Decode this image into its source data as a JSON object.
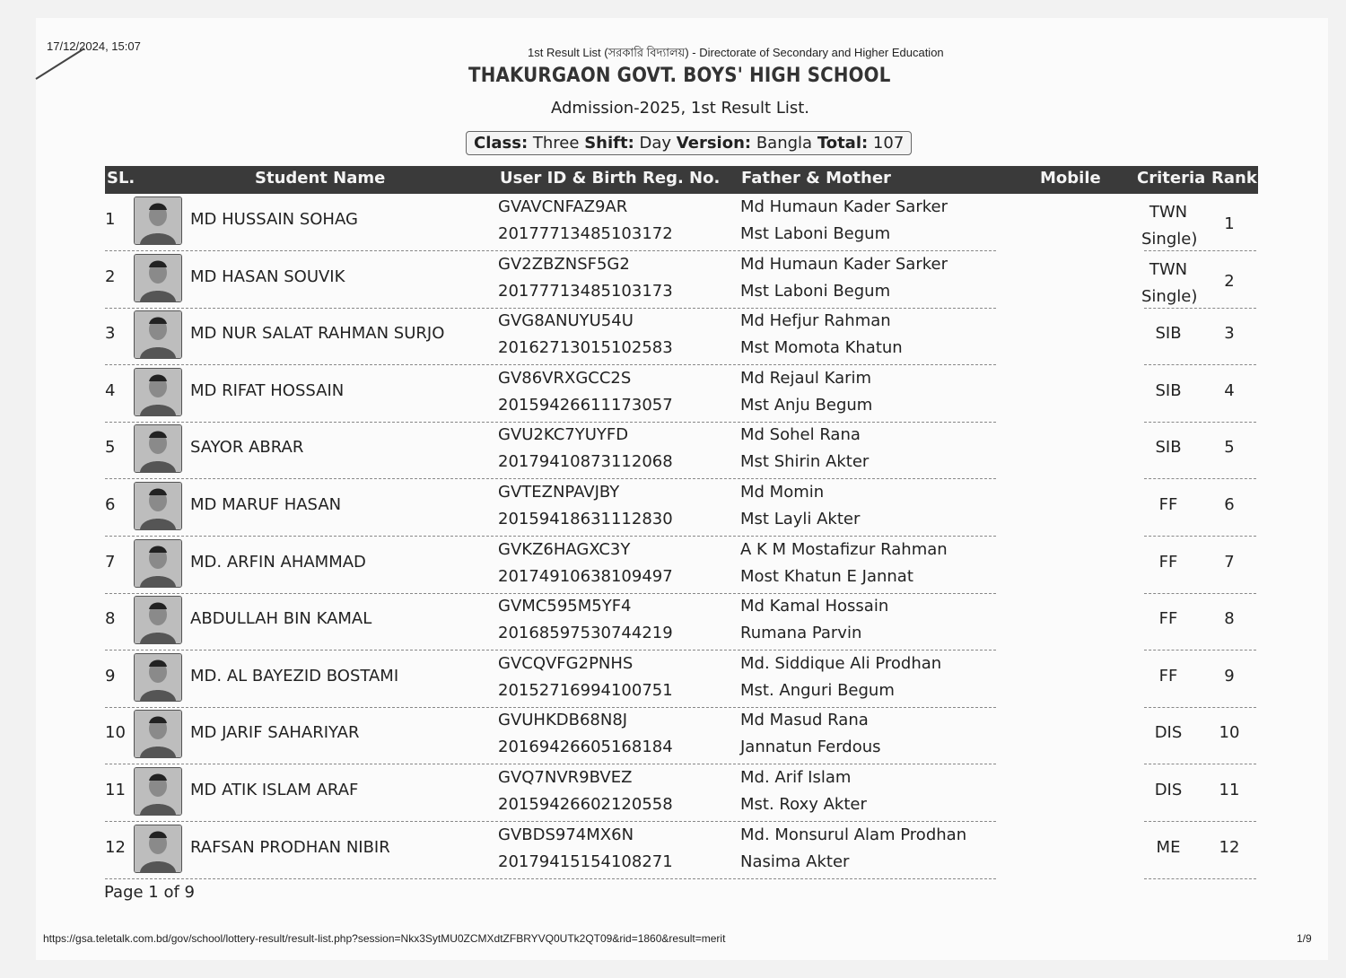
{
  "header": {
    "timestamp": "17/12/2024, 15:07",
    "page_title": "1st Result List (সরকারি বিদ্যালয়) - Directorate of Secondary and Higher Education",
    "school_name": "THAKURGAON GOVT. BOYS' HIGH SCHOOL",
    "subtitle": "Admission-2025, 1st Result List.",
    "info": {
      "class_label": "Class:",
      "class_value": "Three",
      "shift_label": "Shift:",
      "shift_value": "Day",
      "version_label": "Version:",
      "version_value": "Bangla",
      "total_label": "Total:",
      "total_value": "107"
    }
  },
  "table": {
    "columns": [
      "SL.",
      "Student Name",
      "User ID & Birth Reg. No.",
      "Father & Mother",
      "Mobile",
      "Criteria",
      "Rank"
    ],
    "rows": [
      {
        "sl": "1",
        "name": "MD HUSSAIN SOHAG",
        "user_id": "GVAVCNFAZ9AR",
        "birth_reg": "20177713485103172",
        "father": "Md Humaun Kader Sarker",
        "mother": "Mst Laboni Begum",
        "mobile": "",
        "criteria": "TWN Single)",
        "rank": "1"
      },
      {
        "sl": "2",
        "name": "MD HASAN SOUVIK",
        "user_id": "GV2ZBZNSF5G2",
        "birth_reg": "20177713485103173",
        "father": "Md Humaun Kader Sarker",
        "mother": "Mst Laboni Begum",
        "mobile": "",
        "criteria": "TWN Single)",
        "rank": "2"
      },
      {
        "sl": "3",
        "name": "MD NUR SALAT RAHMAN SURJO",
        "user_id": "GVG8ANUYU54U",
        "birth_reg": "20162713015102583",
        "father": "Md Hefjur Rahman",
        "mother": "Mst Momota Khatun",
        "mobile": "",
        "criteria": "SIB",
        "rank": "3"
      },
      {
        "sl": "4",
        "name": "MD RIFAT HOSSAIN",
        "user_id": "GV86VRXGCC2S",
        "birth_reg": "20159426611173057",
        "father": "Md Rejaul Karim",
        "mother": "Mst Anju Begum",
        "mobile": "",
        "criteria": "SIB",
        "rank": "4"
      },
      {
        "sl": "5",
        "name": "SAYOR ABRAR",
        "user_id": "GVU2KC7YUYFD",
        "birth_reg": "20179410873112068",
        "father": "Md Sohel Rana",
        "mother": "Mst Shirin Akter",
        "mobile": "",
        "criteria": "SIB",
        "rank": "5"
      },
      {
        "sl": "6",
        "name": "MD MARUF HASAN",
        "user_id": "GVTEZNPAVJBY",
        "birth_reg": "20159418631112830",
        "father": "Md Momin",
        "mother": "Mst Layli Akter",
        "mobile": "",
        "criteria": "FF",
        "rank": "6"
      },
      {
        "sl": "7",
        "name": "MD. ARFIN AHAMMAD",
        "user_id": "GVKZ6HAGXC3Y",
        "birth_reg": "20174910638109497",
        "father": "A K M Mostafizur Rahman",
        "mother": "Most Khatun E Jannat",
        "mobile": "",
        "criteria": "FF",
        "rank": "7"
      },
      {
        "sl": "8",
        "name": "ABDULLAH BIN KAMAL",
        "user_id": "GVMC595M5YF4",
        "birth_reg": "20168597530744219",
        "father": "Md Kamal Hossain",
        "mother": "Rumana Parvin",
        "mobile": "",
        "criteria": "FF",
        "rank": "8"
      },
      {
        "sl": "9",
        "name": "MD. AL BAYEZID BOSTAMI",
        "user_id": "GVCQVFG2PNHS",
        "birth_reg": "20152716994100751",
        "father": "Md. Siddique Ali Prodhan",
        "mother": "Mst. Anguri Begum",
        "mobile": "",
        "criteria": "FF",
        "rank": "9"
      },
      {
        "sl": "10",
        "name": "MD JARIF SAHARIYAR",
        "user_id": "GVUHKDB68N8J",
        "birth_reg": "20169426605168184",
        "father": "Md Masud Rana",
        "mother": "Jannatun Ferdous",
        "mobile": "",
        "criteria": "DIS",
        "rank": "10"
      },
      {
        "sl": "11",
        "name": "MD ATIK ISLAM ARAF",
        "user_id": "GVQ7NVR9BVEZ",
        "birth_reg": "20159426602120558",
        "father": "Md. Arif Islam",
        "mother": "Mst. Roxy Akter",
        "mobile": "",
        "criteria": "DIS",
        "rank": "11"
      },
      {
        "sl": "12",
        "name": "RAFSAN PRODHAN NIBIR",
        "user_id": "GVBDS974MX6N",
        "birth_reg": "20179415154108271",
        "father": "Md. Monsurul Alam Prodhan",
        "mother": "Nasima Akter",
        "mobile": "",
        "criteria": "ME",
        "rank": "12"
      }
    ]
  },
  "footer": {
    "page_of": "Page 1 of 9",
    "url": "https://gsa.teletalk.com.bd/gov/school/lottery-result/result-list.php?session=Nkx3SytMU0ZCMXdtZFBRYVQ0UTk2QT09&rid=1860&result=merit",
    "page_counter": "1/9"
  },
  "colors": {
    "header_bg": "#3a3a3a",
    "header_text": "#f4f4f4",
    "paper": "#fbfbfb"
  }
}
